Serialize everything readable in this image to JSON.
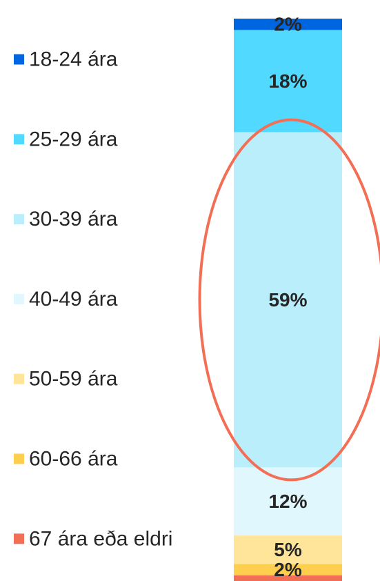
{
  "chart_data": {
    "type": "bar",
    "stacked": true,
    "orientation": "vertical",
    "title": "",
    "xlabel": "",
    "ylabel": "",
    "legend_position": "left",
    "grid": false,
    "series": [
      {
        "name": "18-24 ára",
        "value": 2,
        "label": "2%",
        "color": "#0066E0"
      },
      {
        "name": "25-29 ára",
        "value": 18,
        "label": "18%",
        "color": "#52D9FF"
      },
      {
        "name": "30-39 ára",
        "value": 59,
        "label": "59%",
        "color": "#BBEEFB"
      },
      {
        "name": "40-49 ára",
        "value": 12,
        "label": "12%",
        "color": "#E0F7FD"
      },
      {
        "name": "50-59 ára",
        "value": 5,
        "label": "5%",
        "color": "#FEE599"
      },
      {
        "name": "60-66 ára",
        "value": 2,
        "label": "2%",
        "color": "#FECF4E"
      },
      {
        "name": "67 ára eða eldri",
        "value": 1,
        "label": "",
        "color": "#F26F55"
      }
    ],
    "highlight": {
      "series": "30-39 ára",
      "shape": "ellipse",
      "color": "#F26F55"
    }
  }
}
